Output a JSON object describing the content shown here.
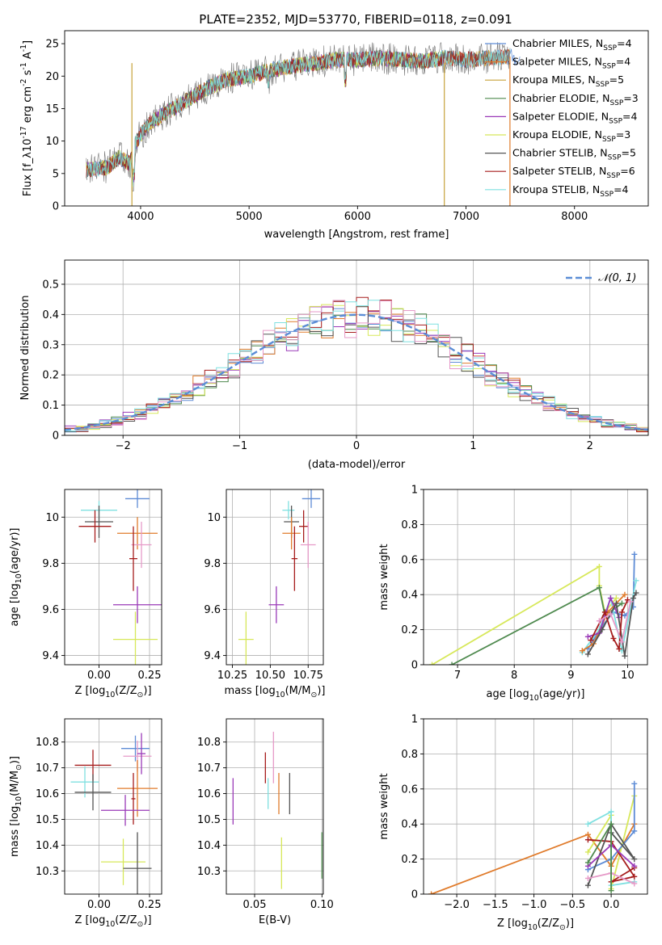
{
  "figure_title": "PLATE=2352, MJD=53770, FIBERID=0118, z=0.091",
  "chart_data": [
    {
      "id": "spectrum",
      "type": "line",
      "title": "PLATE=2352, MJD=53770, FIBERID=0118, z=0.091",
      "xlabel": "wavelength [Angstrom, rest frame]",
      "ylabel": "Flux [f_λ 10^-17 erg cm^-2 s^-1 A^-1]",
      "xlim": [
        3300,
        8680
      ],
      "ylim": [
        0,
        27
      ],
      "xticks": [
        4000,
        5000,
        6000,
        7000,
        8000
      ],
      "yticks": [
        0,
        5,
        10,
        15,
        20,
        25
      ],
      "grid": false,
      "legend_position": "right",
      "spectrum_shape": {
        "x": [
          3500,
          3700,
          3800,
          3900,
          3950,
          4000,
          4100,
          4200,
          4400,
          4600,
          4800,
          5000,
          5200,
          5400,
          5600,
          5800,
          6000,
          6200,
          6400,
          6600,
          6800,
          7000,
          7200,
          7400,
          7500
        ],
        "y": [
          5.5,
          6.0,
          7.5,
          6.5,
          9.5,
          11.0,
          13.0,
          14.0,
          16.0,
          18.0,
          19.5,
          20.0,
          21.0,
          21.5,
          22.0,
          22.5,
          22.5,
          22.8,
          22.5,
          22.3,
          22.8,
          22.5,
          22.8,
          23.0,
          22.8
        ]
      },
      "series": [
        {
          "name": "Chabrier MILES, N_SSP=4",
          "color": "#5e8cd6",
          "x_max": 8680
        },
        {
          "name": "Salpeter MILES, N_SSP=4",
          "color": "#e07b2b",
          "x_max": 7410
        },
        {
          "name": "Kroupa MILES, N_SSP=5",
          "color": "#c7a23a",
          "x_max": 7410
        },
        {
          "name": "Chabrier ELODIE, N_SSP=3",
          "color": "#4f8a4f",
          "x_max": 6800
        },
        {
          "name": "Salpeter ELODIE, N_SSP=4",
          "color": "#9a3ab8",
          "x_max": 6800
        },
        {
          "name": "Kroupa ELODIE, N_SSP=3",
          "color": "#d7e85a",
          "x_max": 6800
        },
        {
          "name": "Chabrier STELIB, N_SSP=5",
          "color": "#555555",
          "x_max": 7410
        },
        {
          "name": "Salpeter STELIB, N_SSP=6",
          "color": "#a61c1c",
          "x_max": 7410
        },
        {
          "name": "Kroupa STELIB, N_SSP=4",
          "color": "#7fe0e0",
          "x_max": 7410
        }
      ],
      "data_line": {
        "color": "#777777",
        "x_max": 7410
      }
    },
    {
      "id": "residuals",
      "type": "line",
      "xlabel": "(data-model)/error",
      "ylabel": "Normed distribution",
      "xlim": [
        -2.5,
        2.5
      ],
      "ylim": [
        0,
        0.58
      ],
      "xticks": [
        -2,
        -1,
        0,
        1,
        2
      ],
      "yticks": [
        0.0,
        0.1,
        0.2,
        0.3,
        0.4,
        0.5
      ],
      "grid": true,
      "legend_position": "top-right",
      "legend_label": "𝒩(0, 1)",
      "gaussian_color": "#5b8dd6",
      "bin_width": 0.1,
      "series_colors": [
        "#5e8cd6",
        "#e07b2b",
        "#4f8a4f",
        "#9a3ab8",
        "#d7e85a",
        "#555555",
        "#a61c1c",
        "#7fe0e0",
        "#e69ac8"
      ]
    },
    {
      "id": "age-vs-Z",
      "type": "scatter",
      "xlabel": "Z [log10(Z/Z⊙)]",
      "ylabel": "age [log10(age/yr)]",
      "xlim": [
        -0.17,
        0.31
      ],
      "ylim": [
        9.36,
        10.12
      ],
      "xticks": [
        0.0,
        0.25
      ],
      "xticklabels": [
        "0.00",
        "0.25"
      ],
      "yticks": [
        9.4,
        9.6,
        9.8,
        10.0
      ],
      "grid": true,
      "points": [
        {
          "x": 0.19,
          "y": 10.08,
          "xerr": 0.06,
          "yerr": 0.04,
          "color": "#5e8cd6"
        },
        {
          "x": 0.19,
          "y": 9.93,
          "xerr": 0.1,
          "yerr": 0.07,
          "color": "#e07b2b"
        },
        {
          "x": 0.0,
          "y": 10.03,
          "xerr": 0.09,
          "yerr": 0.04,
          "color": "#7fe0e0"
        },
        {
          "x": 0.0,
          "y": 9.98,
          "xerr": 0.07,
          "yerr": 0.07,
          "color": "#555555"
        },
        {
          "x": -0.02,
          "y": 9.96,
          "xerr": 0.08,
          "yerr": 0.07,
          "color": "#a61c1c"
        },
        {
          "x": 0.21,
          "y": 9.88,
          "xerr": 0.05,
          "yerr": 0.1,
          "color": "#e69ac8"
        },
        {
          "x": 0.17,
          "y": 9.82,
          "xerr": 0.02,
          "yerr": 0.14,
          "color": "#a61c1c"
        },
        {
          "x": 0.19,
          "y": 9.62,
          "xerr": 0.12,
          "yerr": 0.08,
          "color": "#9a3ab8"
        },
        {
          "x": 0.18,
          "y": 9.47,
          "xerr": 0.11,
          "yerr": 0.12,
          "color": "#d7e85a"
        }
      ]
    },
    {
      "id": "age-vs-mass",
      "type": "scatter",
      "xlabel": "mass [log10(M/M⊙)]",
      "ylabel": "",
      "xlim": [
        10.21,
        10.85
      ],
      "ylim": [
        9.36,
        10.12
      ],
      "xticks": [
        10.25,
        10.5,
        10.75
      ],
      "xticklabels": [
        "10.25",
        "10.50",
        "10.75"
      ],
      "yticks": [
        9.4,
        9.6,
        9.8,
        10.0
      ],
      "grid": true,
      "points": [
        {
          "x": 10.77,
          "y": 10.08,
          "xerr": 0.06,
          "yerr": 0.04,
          "color": "#5e8cd6"
        },
        {
          "x": 10.62,
          "y": 10.03,
          "xerr": 0.04,
          "yerr": 0.04,
          "color": "#7fe0e0"
        },
        {
          "x": 10.64,
          "y": 9.98,
          "xerr": 0.05,
          "yerr": 0.07,
          "color": "#555555"
        },
        {
          "x": 10.72,
          "y": 9.96,
          "xerr": 0.03,
          "yerr": 0.07,
          "color": "#a61c1c"
        },
        {
          "x": 10.64,
          "y": 9.93,
          "xerr": 0.06,
          "yerr": 0.07,
          "color": "#e07b2b"
        },
        {
          "x": 10.75,
          "y": 9.88,
          "xerr": 0.05,
          "yerr": 0.1,
          "color": "#e69ac8"
        },
        {
          "x": 10.66,
          "y": 9.82,
          "xerr": 0.02,
          "yerr": 0.14,
          "color": "#a61c1c"
        },
        {
          "x": 10.54,
          "y": 9.62,
          "xerr": 0.05,
          "yerr": 0.08,
          "color": "#9a3ab8"
        },
        {
          "x": 10.34,
          "y": 9.47,
          "xerr": 0.05,
          "yerr": 0.12,
          "color": "#d7e85a"
        }
      ]
    },
    {
      "id": "mass-weight-vs-age",
      "type": "line",
      "xlabel": "age [log10(age/yr)]",
      "ylabel": "mass weight",
      "xlim": [
        6.4,
        10.35
      ],
      "ylim": [
        0,
        1
      ],
      "xticks": [
        7,
        8,
        9,
        10
      ],
      "yticks": [
        0.0,
        0.2,
        0.4,
        0.6,
        0.8,
        1.0
      ],
      "grid": true,
      "series": [
        {
          "color": "#d7e85a",
          "x": [
            6.55,
            9.5,
            9.5,
            9.6,
            9.8
          ],
          "y": [
            0.0,
            0.56,
            0.45,
            0.3,
            0.38
          ]
        },
        {
          "color": "#4f8a4f",
          "x": [
            6.9,
            9.5,
            9.6,
            9.9
          ],
          "y": [
            0.0,
            0.44,
            0.28,
            0.35
          ]
        },
        {
          "color": "#5e8cd6",
          "x": [
            9.3,
            9.55,
            9.75,
            9.95,
            10.1,
            10.12
          ],
          "y": [
            0.09,
            0.22,
            0.3,
            0.28,
            0.33,
            0.63
          ]
        },
        {
          "color": "#7fe0e0",
          "x": [
            9.2,
            9.5,
            9.7,
            9.9,
            10.15
          ],
          "y": [
            0.07,
            0.2,
            0.38,
            0.08,
            0.48
          ]
        },
        {
          "color": "#e07b2b",
          "x": [
            9.2,
            9.4,
            9.65,
            9.95
          ],
          "y": [
            0.08,
            0.12,
            0.3,
            0.4
          ]
        },
        {
          "color": "#9a3ab8",
          "x": [
            9.3,
            9.5,
            9.7,
            9.85
          ],
          "y": [
            0.16,
            0.18,
            0.38,
            0.27
          ]
        },
        {
          "color": "#555555",
          "x": [
            9.3,
            9.55,
            9.8,
            9.95,
            10.1,
            10.15
          ],
          "y": [
            0.06,
            0.2,
            0.35,
            0.05,
            0.38,
            0.41
          ]
        },
        {
          "color": "#a61c1c",
          "x": [
            9.35,
            9.6,
            9.75,
            9.85,
            9.9,
            10.0
          ],
          "y": [
            0.14,
            0.3,
            0.15,
            0.09,
            0.3,
            0.37
          ]
        },
        {
          "color": "#e69ac8",
          "x": [
            9.5,
            9.7,
            9.9,
            10.05
          ],
          "y": [
            0.25,
            0.29,
            0.13,
            0.36
          ]
        }
      ]
    },
    {
      "id": "mass-vs-Z",
      "type": "scatter",
      "xlabel": "Z [log10(Z/Z⊙)]",
      "ylabel": "mass [log10(M/M⊙)]",
      "xlim": [
        -0.17,
        0.31
      ],
      "ylim": [
        10.21,
        10.89
      ],
      "xticks": [
        0.0,
        0.25
      ],
      "xticklabels": [
        "0.00",
        "0.25"
      ],
      "yticks": [
        10.3,
        10.4,
        10.5,
        10.6,
        10.7,
        10.8
      ],
      "grid": true,
      "points": [
        {
          "x": 0.18,
          "y": 10.775,
          "xerr": 0.07,
          "yerr": 0.05,
          "color": "#5e8cd6"
        },
        {
          "x": 0.19,
          "y": 10.745,
          "xerr": 0.07,
          "yerr": 0.06,
          "color": "#e69ac8"
        },
        {
          "x": 0.21,
          "y": 10.755,
          "xerr": 0.02,
          "yerr": 0.08,
          "color": "#9a3ab8"
        },
        {
          "x": -0.03,
          "y": 10.71,
          "xerr": 0.09,
          "yerr": 0.06,
          "color": "#a61c1c"
        },
        {
          "x": -0.07,
          "y": 10.645,
          "xerr": 0.07,
          "yerr": 0.06,
          "color": "#7fe0e0"
        },
        {
          "x": -0.03,
          "y": 10.605,
          "xerr": 0.09,
          "yerr": 0.07,
          "color": "#555555"
        },
        {
          "x": 0.19,
          "y": 10.62,
          "xerr": 0.1,
          "yerr": 0.11,
          "color": "#e07b2b"
        },
        {
          "x": 0.17,
          "y": 10.58,
          "xerr": 0.01,
          "yerr": 0.1,
          "color": "#a61c1c"
        },
        {
          "x": 0.13,
          "y": 10.535,
          "xerr": 0.12,
          "yerr": 0.06,
          "color": "#9a3ab8"
        },
        {
          "x": 0.12,
          "y": 10.335,
          "xerr": 0.11,
          "yerr": 0.09,
          "color": "#d7e85a"
        },
        {
          "x": 0.19,
          "y": 10.31,
          "xerr": 0.07,
          "yerr": 0.14,
          "color": "#555555"
        }
      ]
    },
    {
      "id": "mass-vs-ebv",
      "type": "scatter",
      "xlabel": "E(B-V)",
      "ylabel": "",
      "xlim": [
        0.029,
        0.101
      ],
      "ylim": [
        10.21,
        10.89
      ],
      "xticks": [
        0.05,
        0.1
      ],
      "xticklabels": [
        "0.05",
        "0.10"
      ],
      "yticks": [
        10.3,
        10.4,
        10.5,
        10.6,
        10.7,
        10.8
      ],
      "grid": true,
      "points": [
        {
          "x": 0.064,
          "y": 10.74,
          "yerr": 0.1,
          "color": "#e69ac8"
        },
        {
          "x": 0.058,
          "y": 10.7,
          "yerr": 0.06,
          "color": "#a61c1c"
        },
        {
          "x": 0.068,
          "y": 10.6,
          "yerr": 0.08,
          "color": "#e07b2b"
        },
        {
          "x": 0.06,
          "y": 10.6,
          "yerr": 0.06,
          "color": "#7fe0e0"
        },
        {
          "x": 0.076,
          "y": 10.6,
          "yerr": 0.08,
          "color": "#555555"
        },
        {
          "x": 0.034,
          "y": 10.57,
          "yerr": 0.09,
          "color": "#9a3ab8"
        },
        {
          "x": 0.07,
          "y": 10.33,
          "yerr": 0.1,
          "color": "#d7e85a"
        },
        {
          "x": 0.1,
          "y": 10.36,
          "yerr": 0.09,
          "color": "#4f8a4f"
        }
      ]
    },
    {
      "id": "mass-weight-vs-Z",
      "type": "line",
      "xlabel": "Z [log10(Z/Z⊙)]",
      "ylabel": "mass weight",
      "xlim": [
        -2.43,
        0.47
      ],
      "ylim": [
        0,
        1
      ],
      "xticks": [
        -2.0,
        -1.5,
        -1.0,
        -0.5,
        0.0
      ],
      "xticklabels": [
        "−2.0",
        "−1.5",
        "−1.0",
        "−0.5",
        "0.0"
      ],
      "yticks": [
        0.0,
        0.2,
        0.4,
        0.6,
        0.8,
        1.0
      ],
      "grid": true,
      "series": [
        {
          "color": "#e07b2b",
          "x": [
            -2.33,
            -0.3,
            0.0,
            0.3
          ],
          "y": [
            0.0,
            0.34,
            0.16,
            0.4
          ]
        },
        {
          "color": "#d7e85a",
          "x": [
            -0.3,
            0.0,
            0.0,
            0.3
          ],
          "y": [
            0.24,
            0.45,
            0.03,
            0.56
          ]
        },
        {
          "color": "#5e8cd6",
          "x": [
            -0.3,
            0.0,
            0.3,
            0.3
          ],
          "y": [
            0.14,
            0.2,
            0.36,
            0.63
          ]
        },
        {
          "color": "#7fe0e0",
          "x": [
            -0.3,
            0.0,
            0.0,
            0.3
          ],
          "y": [
            0.4,
            0.47,
            0.05,
            0.07
          ]
        },
        {
          "color": "#a61c1c",
          "x": [
            -0.3,
            0.0,
            0.3,
            0.0,
            0.3
          ],
          "y": [
            0.31,
            0.3,
            0.1,
            0.07,
            0.15
          ]
        },
        {
          "color": "#555555",
          "x": [
            -0.3,
            0.0,
            0.3,
            0.0
          ],
          "y": [
            0.05,
            0.4,
            0.2,
            0.35
          ]
        },
        {
          "color": "#9a3ab8",
          "x": [
            -0.3,
            0.0,
            0.3
          ],
          "y": [
            0.16,
            0.28,
            0.16
          ]
        },
        {
          "color": "#e69ac8",
          "x": [
            -0.3,
            0.0,
            0.3
          ],
          "y": [
            0.09,
            0.12,
            0.06
          ]
        },
        {
          "color": "#4f8a4f",
          "x": [
            -0.3,
            0.0,
            0.0
          ],
          "y": [
            0.18,
            0.4,
            0.02
          ]
        }
      ]
    }
  ]
}
